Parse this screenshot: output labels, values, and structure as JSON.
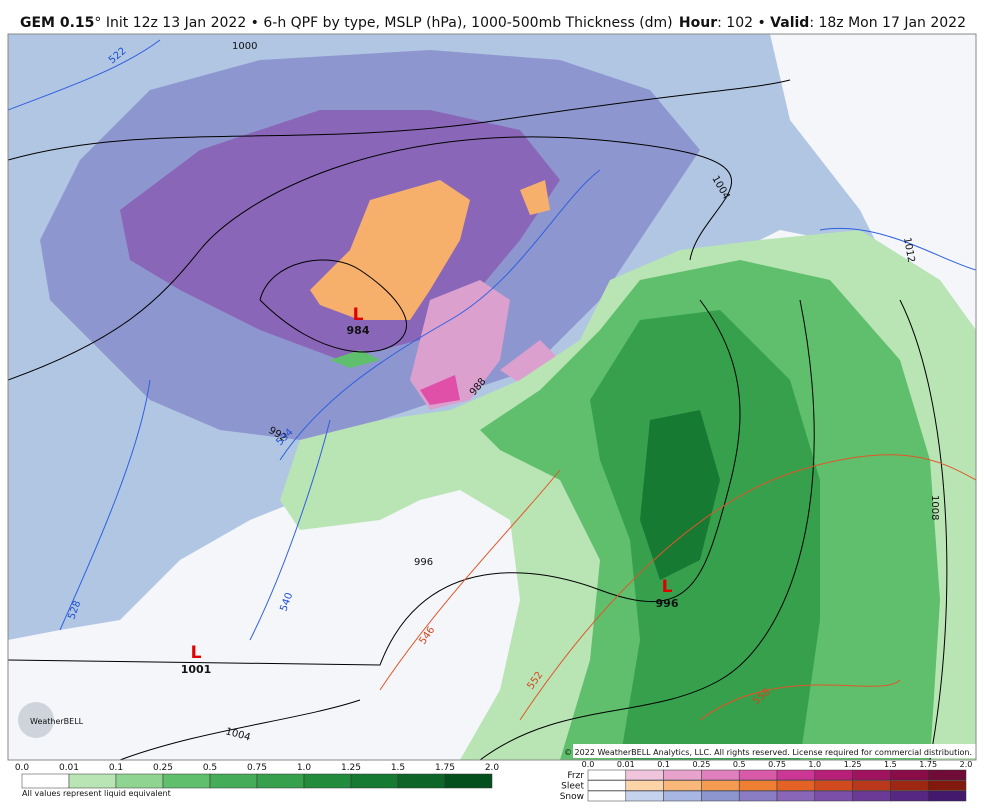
{
  "header": {
    "model": "GEM 0.15",
    "description": "° Init 12z 13 Jan 2022 • 6-h QPF by type, MSLP (hPa), 1000-500mb Thickness (dm)",
    "hour_label": "Hour",
    "hour_value": ": 102 • ",
    "valid_label": "Valid",
    "valid_value": ": 18z Mon 17 Jan 2022"
  },
  "map": {
    "lows": [
      {
        "symbol": "L",
        "pressure": "984"
      },
      {
        "symbol": "L",
        "pressure": "996"
      },
      {
        "symbol": "L",
        "pressure": "1001"
      }
    ],
    "isobar_labels": [
      "1000",
      "1004",
      "992",
      "988",
      "996",
      "1008",
      "1012",
      "1004"
    ],
    "thickness_labels": [
      "522",
      "528",
      "534",
      "540",
      "546",
      "552",
      "558"
    ],
    "copyright": "© 2022 WeatherBELL Analytics, LLC. All rights reserved. License required for commercial distribution.",
    "logo": "WeatherBELL"
  },
  "legend": {
    "rain_ticks": [
      "0.0",
      "0.01",
      "0.1",
      "0.25",
      "0.5",
      "0.75",
      "1.0",
      "1.25",
      "1.5",
      "1.75",
      "2.0"
    ],
    "note": "All values represent liquid equivalent",
    "type_ticks": [
      "0.0",
      "0.01",
      "0.1",
      "0.25",
      "0.5",
      "0.75",
      "1.0",
      "1.25",
      "1.5",
      "1.75",
      "2.0"
    ],
    "types": [
      "Frzr",
      "Sleet",
      "Snow"
    ]
  }
}
